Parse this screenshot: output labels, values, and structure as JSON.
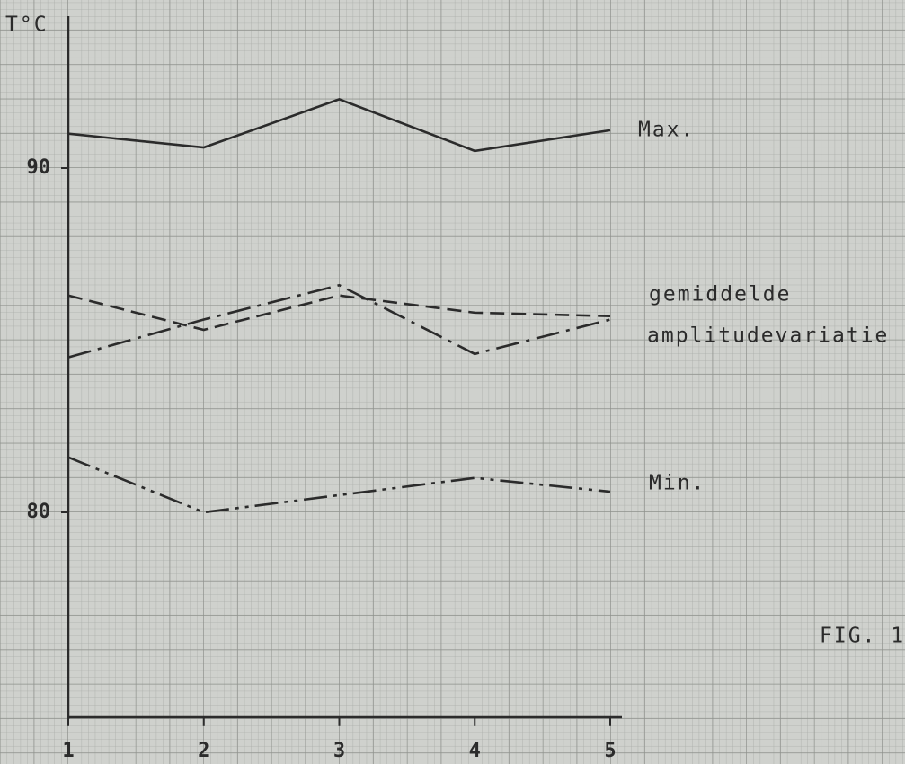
{
  "chart_data": {
    "type": "line",
    "y_label": "T°C",
    "annotation": "FIG. 1",
    "x": [
      1,
      2,
      3,
      4,
      5
    ],
    "xlim": [
      1,
      5
    ],
    "xticks": [
      1,
      2,
      3,
      4,
      5
    ],
    "ylim": [
      74,
      94.4
    ],
    "yticks": [
      80,
      90
    ],
    "grid": true,
    "series": [
      {
        "name": "Max.",
        "color": "#2b2b2b",
        "dash": "solid",
        "values": [
          91.0,
          90.6,
          92.0,
          90.5,
          91.1
        ]
      },
      {
        "name": "gemiddelde",
        "color": "#2b2b2b",
        "dash": "dashed",
        "values": [
          86.3,
          85.3,
          86.3,
          85.8,
          85.7
        ]
      },
      {
        "name": "amplitudevariatie",
        "color": "#2b2b2b",
        "dash": "dashdot",
        "values": [
          84.5,
          85.6,
          86.6,
          84.6,
          85.6
        ]
      },
      {
        "name": "Min.",
        "color": "#2b2b2b",
        "dash": "dashdotdot",
        "values": [
          81.6,
          80.0,
          80.5,
          81.0,
          80.6
        ]
      }
    ]
  }
}
